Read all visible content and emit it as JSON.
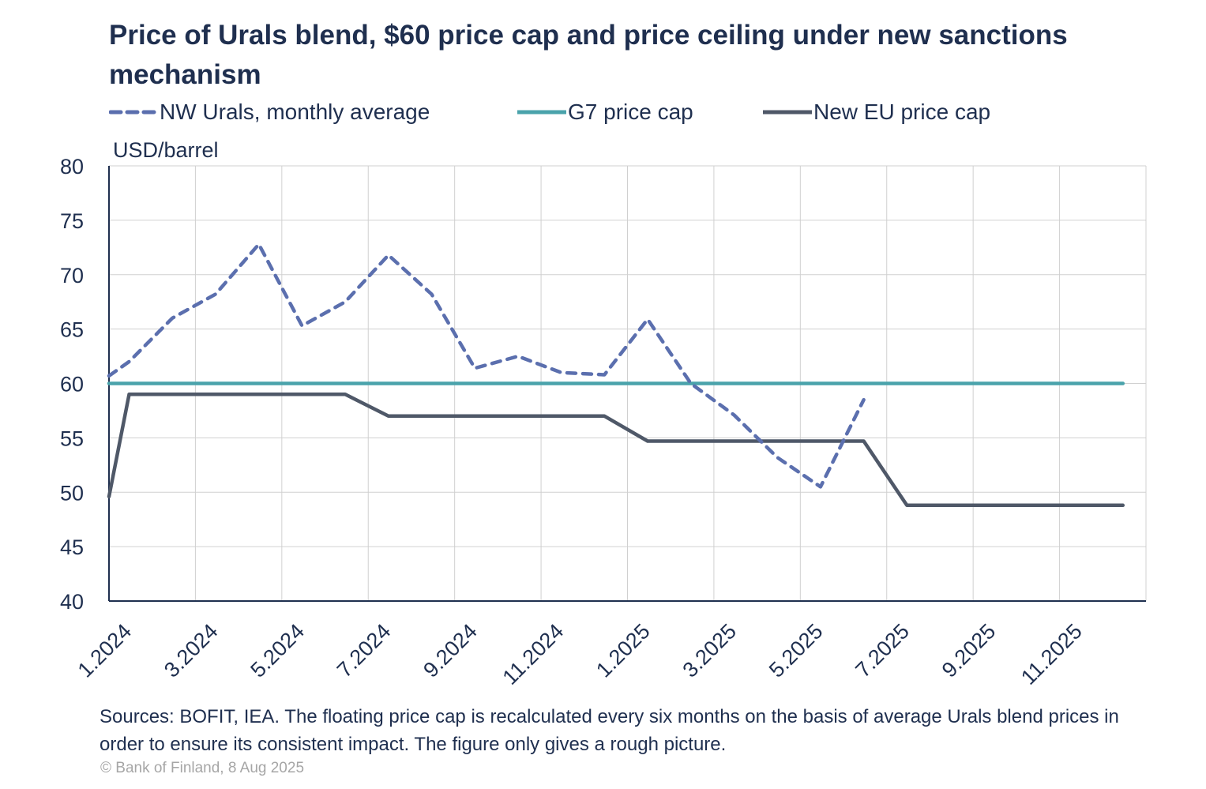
{
  "chart_data": {
    "type": "line",
    "title": "Price of Urals blend, $60 price cap and price ceiling under new sanctions mechanism",
    "ylabel": "USD/barrel",
    "ylim": [
      40,
      80
    ],
    "yticks": [
      "80",
      "75",
      "70",
      "65",
      "60",
      "55",
      "50",
      "45",
      "40"
    ],
    "xticks": [
      "1.2024",
      "3.2024",
      "5.2024",
      "7.2024",
      "9.2024",
      "11.2024",
      "1.2025",
      "3.2025",
      "5.2025",
      "7.2025",
      "9.2025",
      "11.2025"
    ],
    "x_range": [
      "2024-01",
      "2026-01"
    ],
    "grid": true,
    "legend_position": "top",
    "series": [
      {
        "name": "NW Urals, monthly average",
        "style": "dashed",
        "color": "#5b6fae",
        "points": [
          [
            "2024-01-01",
            60.7
          ],
          [
            "2024-01-15",
            62.0
          ],
          [
            "2024-02-15",
            66.0
          ],
          [
            "2024-03-15",
            68.2
          ],
          [
            "2024-04-15",
            72.8
          ],
          [
            "2024-05-15",
            65.3
          ],
          [
            "2024-06-15",
            67.5
          ],
          [
            "2024-07-15",
            71.8
          ],
          [
            "2024-08-15",
            68.2
          ],
          [
            "2024-09-15",
            61.4
          ],
          [
            "2024-10-15",
            62.5
          ],
          [
            "2024-11-15",
            61.0
          ],
          [
            "2024-12-15",
            60.8
          ],
          [
            "2025-01-15",
            65.9
          ],
          [
            "2025-02-15",
            60.0
          ],
          [
            "2025-03-15",
            57.1
          ],
          [
            "2025-04-15",
            53.2
          ],
          [
            "2025-05-15",
            50.5
          ],
          [
            "2025-06-15",
            58.5
          ]
        ]
      },
      {
        "name": "G7 price cap",
        "style": "solid",
        "color": "#4aa3ab",
        "points": [
          [
            "2024-01-01",
            60.0
          ],
          [
            "2025-12-15",
            60.0
          ]
        ]
      },
      {
        "name": "New EU price cap",
        "style": "solid",
        "color": "#4f5868",
        "points": [
          [
            "2024-01-01",
            49.6
          ],
          [
            "2024-01-15",
            59.0
          ],
          [
            "2024-06-15",
            59.0
          ],
          [
            "2024-07-15",
            57.0
          ],
          [
            "2024-12-15",
            57.0
          ],
          [
            "2025-01-15",
            54.7
          ],
          [
            "2025-06-15",
            54.7
          ],
          [
            "2025-07-15",
            48.8
          ],
          [
            "2025-12-15",
            48.8
          ]
        ]
      }
    ],
    "footnote": "Sources: BOFIT, IEA. The floating price cap is recalculated every six months on the basis of average Urals blend prices in order to ensure its consistent impact. The figure only gives a rough picture.",
    "copyright": "© Bank of Finland, 8 Aug 2025"
  }
}
